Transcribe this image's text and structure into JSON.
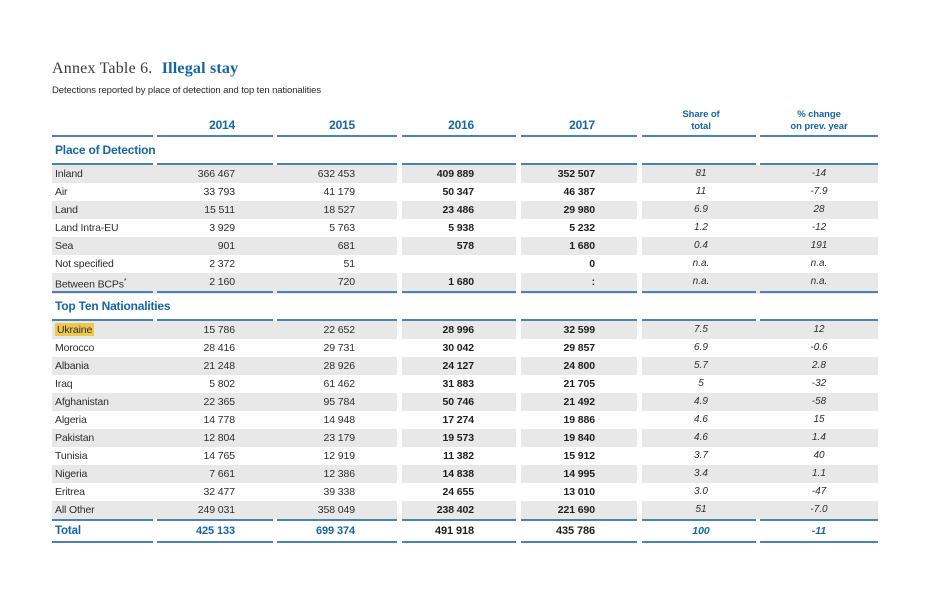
{
  "title": {
    "prefix": "Annex Table 6.",
    "main": "Illegal stay"
  },
  "subtitle": "Detections reported by place of detection and top ten nationalities",
  "columns": {
    "year_2014": "2014",
    "year_2015": "2015",
    "year_2016": "2016",
    "year_2017": "2017",
    "share": "Share of\ntotal",
    "pct_change": "% change\non prev. year"
  },
  "sections": [
    {
      "title": "Place of Detection",
      "rows": [
        {
          "label": "Inland",
          "sup": "",
          "highlight": false,
          "v2014": "366 467",
          "v2015": "632 453",
          "v2016": "409 889",
          "v2017": "352 507",
          "share": "81",
          "pct": "-14"
        },
        {
          "label": "Air",
          "sup": "",
          "highlight": false,
          "v2014": "33 793",
          "v2015": "41 179",
          "v2016": "50 347",
          "v2017": "46 387",
          "share": "11",
          "pct": "-7.9"
        },
        {
          "label": "Land",
          "sup": "",
          "highlight": false,
          "v2014": "15 511",
          "v2015": "18 527",
          "v2016": "23 486",
          "v2017": "29 980",
          "share": "6.9",
          "pct": "28"
        },
        {
          "label": "Land Intra-EU",
          "sup": "",
          "highlight": false,
          "v2014": "3 929",
          "v2015": "5 763",
          "v2016": "5 938",
          "v2017": "5 232",
          "share": "1.2",
          "pct": "-12"
        },
        {
          "label": "Sea",
          "sup": "",
          "highlight": false,
          "v2014": "901",
          "v2015": "681",
          "v2016": "578",
          "v2017": "1 680",
          "share": "0.4",
          "pct": "191"
        },
        {
          "label": "Not specified",
          "sup": "",
          "highlight": false,
          "v2014": "2 372",
          "v2015": "51",
          "v2016": "",
          "v2017": "0",
          "share": "n.a.",
          "pct": "n.a."
        },
        {
          "label": "Between BCPs",
          "sup": "*",
          "highlight": false,
          "v2014": "2 160",
          "v2015": "720",
          "v2016": "1 680",
          "v2017": ":",
          "share": "n.a.",
          "pct": "n.a."
        }
      ]
    },
    {
      "title": "Top Ten Nationalities",
      "rows": [
        {
          "label": "Ukraine",
          "sup": "",
          "highlight": true,
          "v2014": "15 786",
          "v2015": "22 652",
          "v2016": "28 996",
          "v2017": "32 599",
          "share": "7.5",
          "pct": "12"
        },
        {
          "label": "Morocco",
          "sup": "",
          "highlight": false,
          "v2014": "28 416",
          "v2015": "29 731",
          "v2016": "30 042",
          "v2017": "29 857",
          "share": "6.9",
          "pct": "-0.6"
        },
        {
          "label": "Albania",
          "sup": "",
          "highlight": false,
          "v2014": "21 248",
          "v2015": "28 926",
          "v2016": "24 127",
          "v2017": "24 800",
          "share": "5.7",
          "pct": "2.8"
        },
        {
          "label": "Iraq",
          "sup": "",
          "highlight": false,
          "v2014": "5 802",
          "v2015": "61 462",
          "v2016": "31 883",
          "v2017": "21 705",
          "share": "5",
          "pct": "-32"
        },
        {
          "label": "Afghanistan",
          "sup": "",
          "highlight": false,
          "v2014": "22 365",
          "v2015": "95 784",
          "v2016": "50 746",
          "v2017": "21 492",
          "share": "4.9",
          "pct": "-58"
        },
        {
          "label": "Algeria",
          "sup": "",
          "highlight": false,
          "v2014": "14 778",
          "v2015": "14 948",
          "v2016": "17 274",
          "v2017": "19 886",
          "share": "4.6",
          "pct": "15"
        },
        {
          "label": "Pakistan",
          "sup": "",
          "highlight": false,
          "v2014": "12 804",
          "v2015": "23 179",
          "v2016": "19 573",
          "v2017": "19 840",
          "share": "4.6",
          "pct": "1.4"
        },
        {
          "label": "Tunisia",
          "sup": "",
          "highlight": false,
          "v2014": "14 765",
          "v2015": "12 919",
          "v2016": "11 382",
          "v2017": "15 912",
          "share": "3.7",
          "pct": "40"
        },
        {
          "label": "Nigeria",
          "sup": "",
          "highlight": false,
          "v2014": "7 661",
          "v2015": "12 386",
          "v2016": "14 838",
          "v2017": "14 995",
          "share": "3.4",
          "pct": "1.1"
        },
        {
          "label": "Eritrea",
          "sup": "",
          "highlight": false,
          "v2014": "32 477",
          "v2015": "39 338",
          "v2016": "24 655",
          "v2017": "13 010",
          "share": "3.0",
          "pct": "-47"
        },
        {
          "label": "All Other",
          "sup": "",
          "highlight": false,
          "v2014": "249 031",
          "v2015": "358 049",
          "v2016": "238 402",
          "v2017": "221 690",
          "share": "51",
          "pct": "-7.0"
        }
      ]
    }
  ],
  "total": {
    "label": "Total",
    "v2014": "425 133",
    "v2015": "699 374",
    "v2016": "491 918",
    "v2017": "435 786",
    "share": "100",
    "pct": "-11"
  },
  "colors": {
    "accent_blue": "#1566a7",
    "rule_blue": "#4a82b5",
    "row_gray": "#e8e8e8",
    "highlight_yellow": "#ecc84e",
    "text_dark": "#2d2d2d"
  }
}
